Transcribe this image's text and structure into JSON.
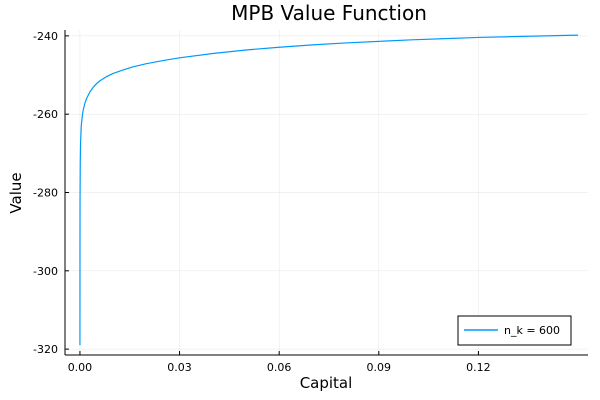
{
  "chart_data": {
    "type": "line",
    "title": "MPB Value Function",
    "xlabel": "Capital",
    "ylabel": "Value",
    "xlim": [
      -0.0045,
      0.153
    ],
    "ylim": [
      -321.5,
      -238.5
    ],
    "xticks": [
      0.0,
      0.03,
      0.06,
      0.09,
      0.12
    ],
    "xtick_labels": [
      "0.00",
      "0.03",
      "0.06",
      "0.09",
      "0.12"
    ],
    "yticks": [
      -320,
      -300,
      -280,
      -260,
      -240
    ],
    "ytick_labels": [
      "-320",
      "-300",
      "-280",
      "-260",
      "-240"
    ],
    "grid": true,
    "legend_position": "bottom-right",
    "series": [
      {
        "name": "n_k = 600",
        "color": "#009AFA",
        "x": [
          0.0,
          1e-05,
          3e-05,
          0.0001,
          0.0002,
          0.0004,
          0.0007,
          0.001,
          0.0015,
          0.002,
          0.003,
          0.004,
          0.005,
          0.006,
          0.008,
          0.01,
          0.013,
          0.016,
          0.02,
          0.025,
          0.03,
          0.04,
          0.05,
          0.06,
          0.07,
          0.08,
          0.09,
          0.1,
          0.11,
          0.12,
          0.13,
          0.14,
          0.15
        ],
        "y": [
          -319,
          -294,
          -282,
          -272,
          -267,
          -263,
          -260.5,
          -258.9,
          -257.2,
          -256.0,
          -254.3,
          -253.1,
          -252.2,
          -251.5,
          -250.4,
          -249.6,
          -248.7,
          -247.9,
          -247.1,
          -246.3,
          -245.6,
          -244.5,
          -243.6,
          -242.9,
          -242.3,
          -241.8,
          -241.4,
          -241.0,
          -240.7,
          -240.4,
          -240.2,
          -240.0,
          -239.8
        ]
      }
    ]
  }
}
